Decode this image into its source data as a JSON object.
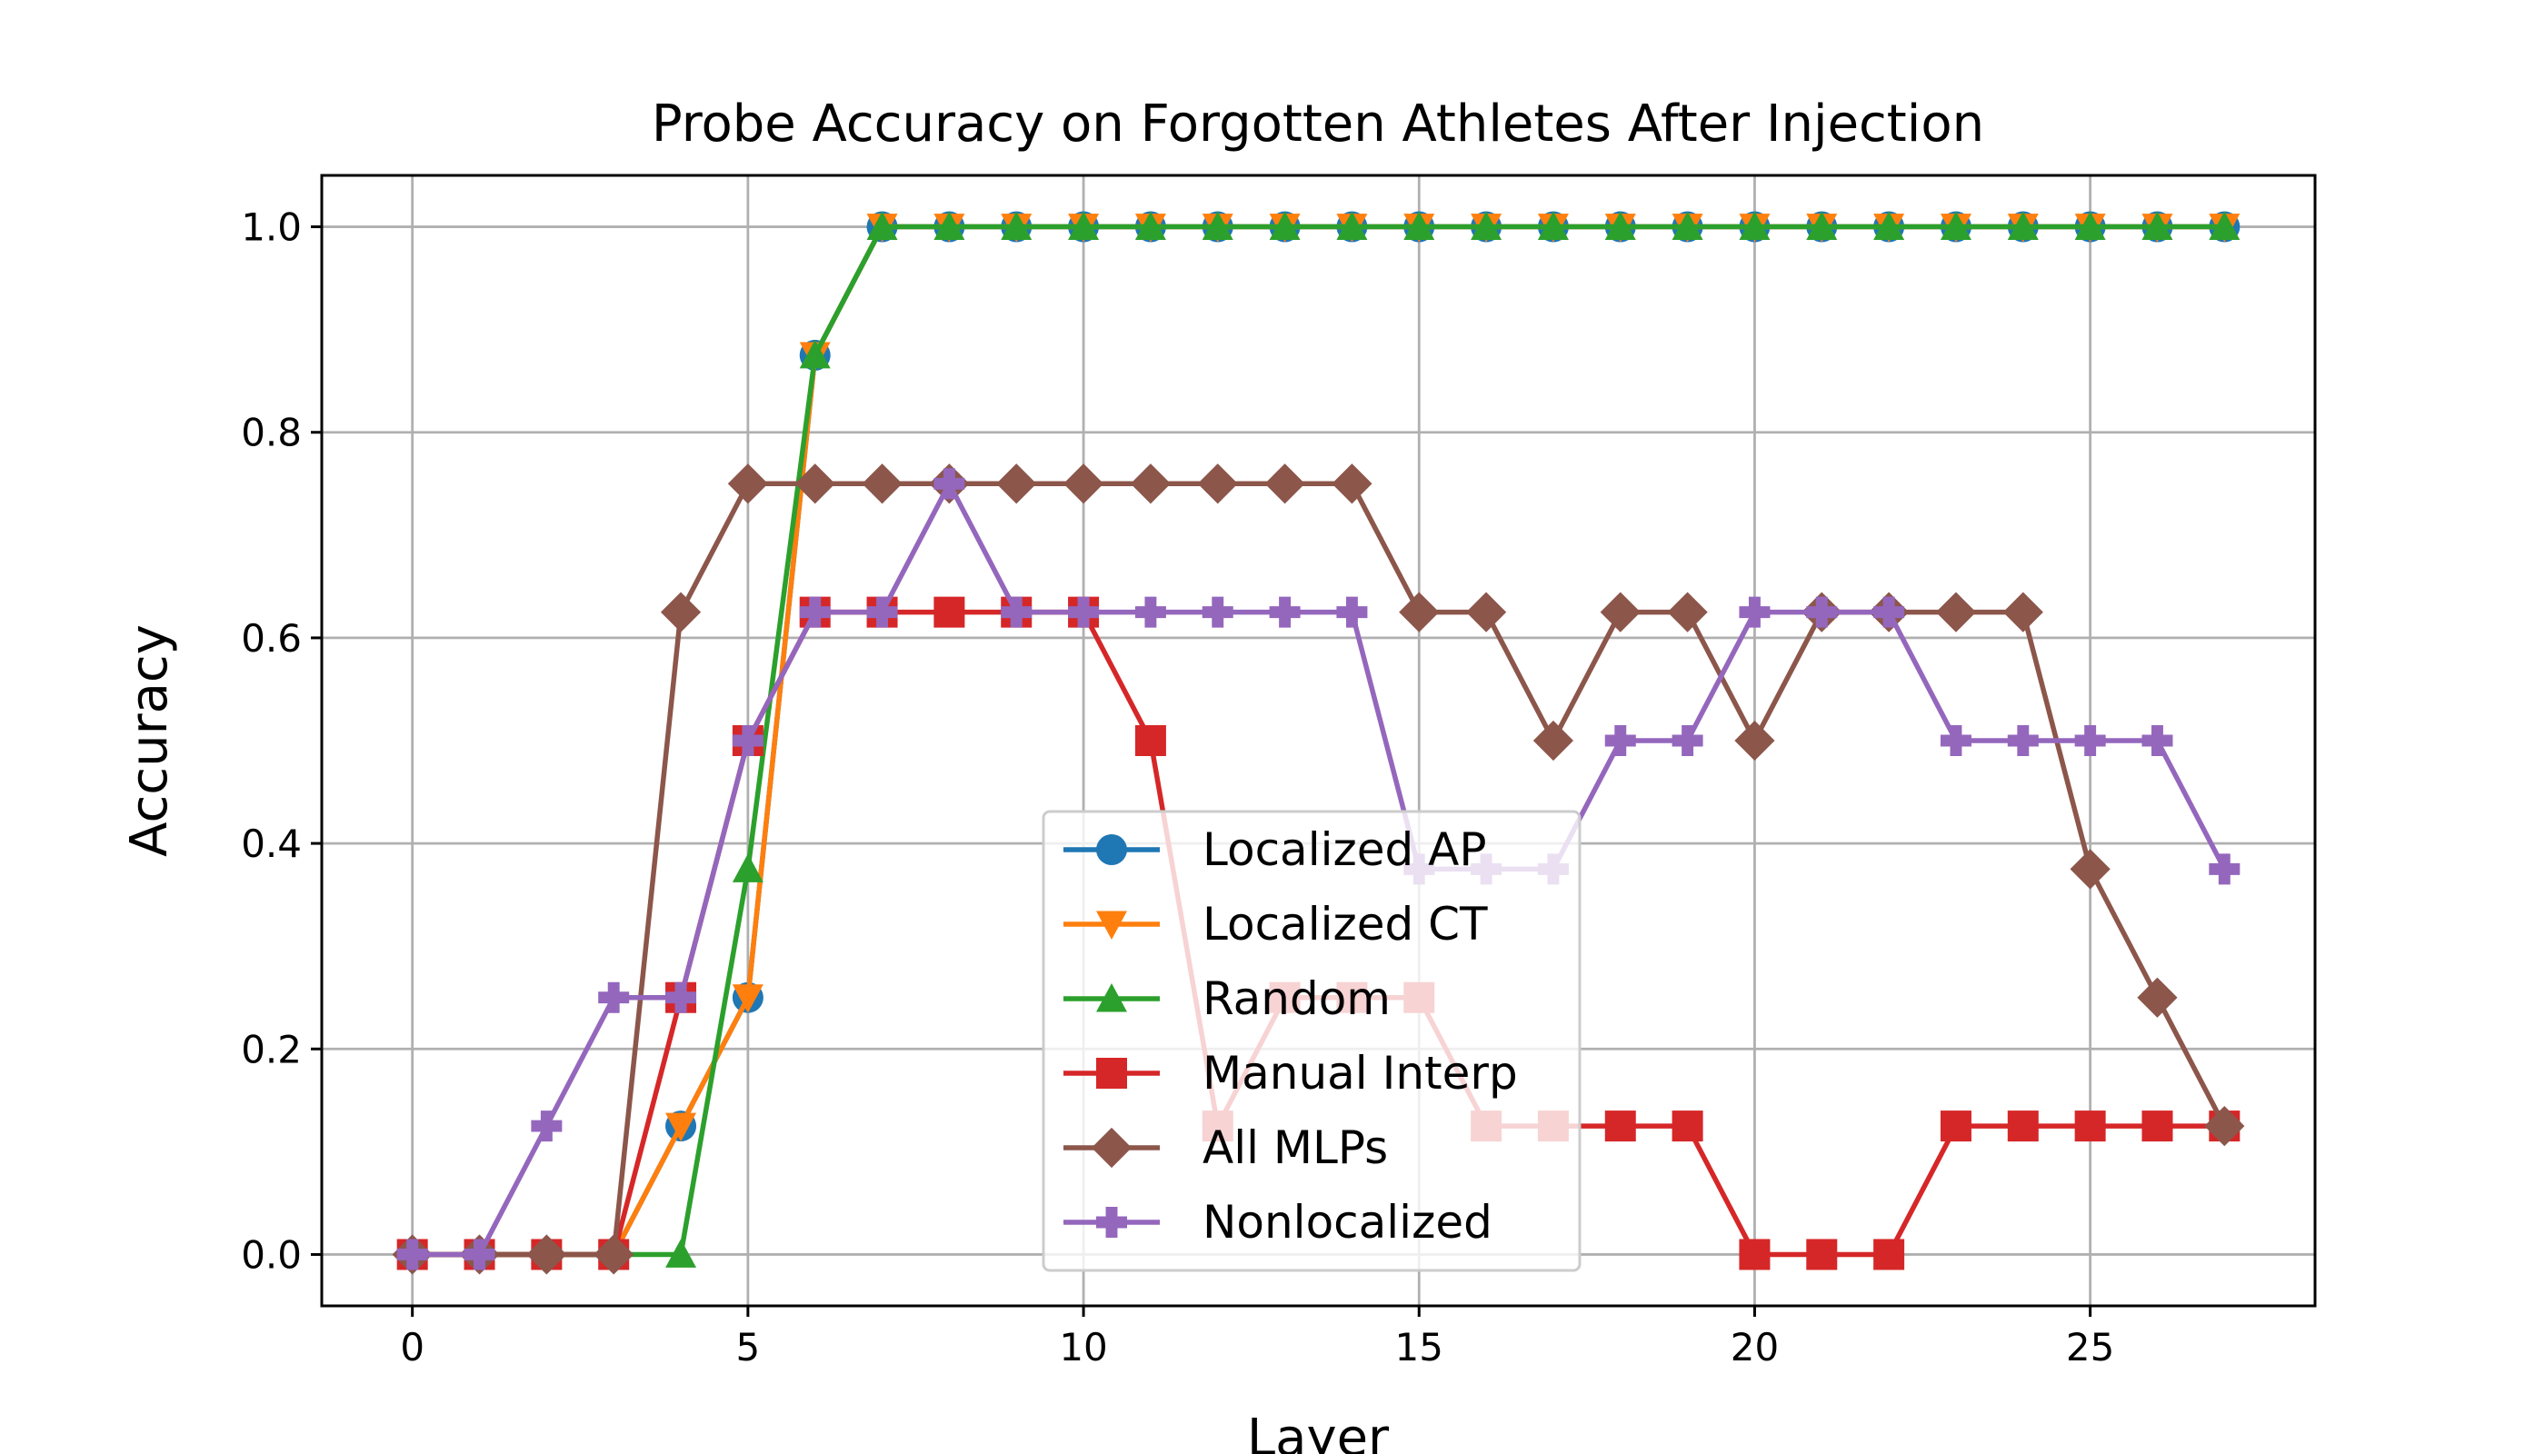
{
  "chart_data": {
    "type": "line",
    "title": "Probe Accuracy on Forgotten Athletes After Injection",
    "xlabel": "Layer",
    "ylabel": "Accuracy",
    "xlim": [
      -1.35,
      28.35
    ],
    "ylim": [
      -0.05,
      1.05
    ],
    "xticks": [
      0,
      5,
      10,
      15,
      20,
      25
    ],
    "yticks": [
      0.0,
      0.2,
      0.4,
      0.6,
      0.8,
      1.0
    ],
    "xtick_labels": [
      "0",
      "5",
      "10",
      "15",
      "20",
      "25"
    ],
    "ytick_labels": [
      "0.0",
      "0.2",
      "0.4",
      "0.6",
      "0.8",
      "1.0"
    ],
    "grid": true,
    "legend_position": "lower center",
    "x": [
      0,
      1,
      2,
      3,
      4,
      5,
      6,
      7,
      8,
      9,
      10,
      11,
      12,
      13,
      14,
      15,
      16,
      17,
      18,
      19,
      20,
      21,
      22,
      23,
      24,
      25,
      26,
      27
    ],
    "series": [
      {
        "name": "Localized AP",
        "color": "#1f77b4",
        "marker": "circle",
        "values": [
          0,
          0,
          0,
          0,
          0.125,
          0.25,
          0.875,
          1,
          1,
          1,
          1,
          1,
          1,
          1,
          1,
          1,
          1,
          1,
          1,
          1,
          1,
          1,
          1,
          1,
          1,
          1,
          1,
          1
        ]
      },
      {
        "name": "Localized CT",
        "color": "#ff7f0e",
        "marker": "triangle-down",
        "values": [
          0,
          0,
          0,
          0,
          0.125,
          0.25,
          0.875,
          1,
          1,
          1,
          1,
          1,
          1,
          1,
          1,
          1,
          1,
          1,
          1,
          1,
          1,
          1,
          1,
          1,
          1,
          1,
          1,
          1
        ]
      },
      {
        "name": "Random",
        "color": "#2ca02c",
        "marker": "triangle-up",
        "values": [
          0,
          0,
          0,
          0,
          0,
          0.375,
          0.875,
          1,
          1,
          1,
          1,
          1,
          1,
          1,
          1,
          1,
          1,
          1,
          1,
          1,
          1,
          1,
          1,
          1,
          1,
          1,
          1,
          1
        ]
      },
      {
        "name": "Manual Interp",
        "color": "#d62728",
        "marker": "square",
        "values": [
          0,
          0,
          0,
          0,
          0.25,
          0.5,
          0.625,
          0.625,
          0.625,
          0.625,
          0.625,
          0.5,
          0.125,
          0.25,
          0.25,
          0.25,
          0.125,
          0.125,
          0.125,
          0.125,
          0,
          0,
          0,
          0.125,
          0.125,
          0.125,
          0.125,
          0.125
        ]
      },
      {
        "name": "All MLPs",
        "color": "#8c564b",
        "marker": "diamond",
        "values": [
          0,
          0,
          0,
          0,
          0.625,
          0.75,
          0.75,
          0.75,
          0.75,
          0.75,
          0.75,
          0.75,
          0.75,
          0.75,
          0.75,
          0.625,
          0.625,
          0.5,
          0.625,
          0.625,
          0.5,
          0.625,
          0.625,
          0.625,
          0.625,
          0.375,
          0.25,
          0.125
        ]
      },
      {
        "name": "Nonlocalized",
        "color": "#9467bd",
        "marker": "plus",
        "values": [
          0,
          0,
          0.125,
          0.25,
          0.25,
          0.5,
          0.625,
          0.625,
          0.75,
          0.625,
          0.625,
          0.625,
          0.625,
          0.625,
          0.625,
          0.375,
          0.375,
          0.375,
          0.5,
          0.5,
          0.625,
          0.625,
          0.625,
          0.5,
          0.5,
          0.5,
          0.5,
          0.375
        ]
      }
    ]
  }
}
